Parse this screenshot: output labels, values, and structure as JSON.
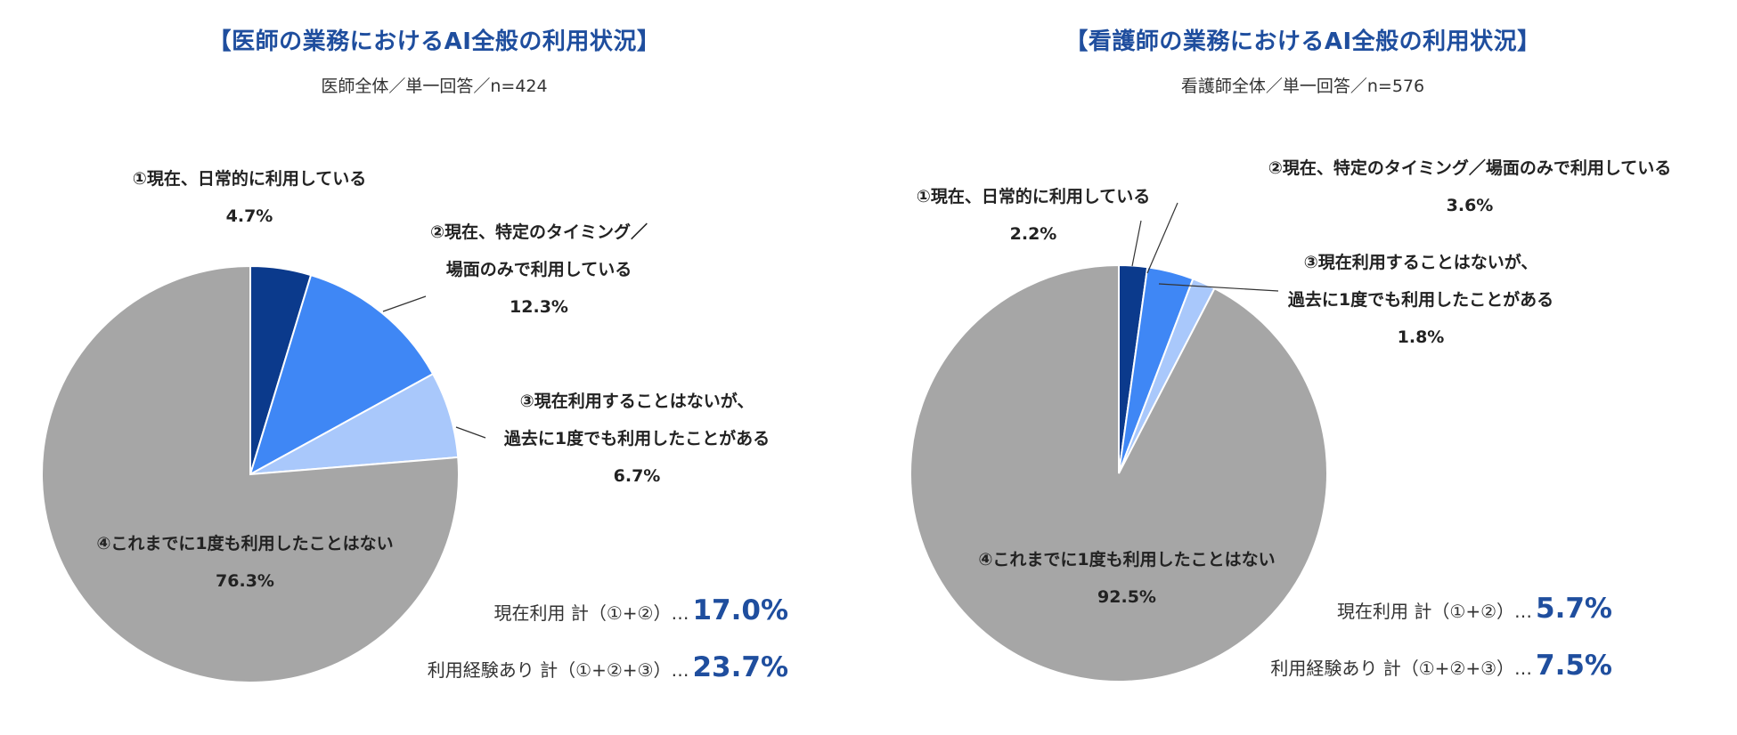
{
  "colors": {
    "title": "#1f4e9e",
    "slice1": "#0b3a8c",
    "slice2": "#3f87f5",
    "slice3": "#a9c8fb",
    "slice4": "#a6a6a6",
    "leader": "#333333"
  },
  "chart_data": [
    {
      "type": "pie",
      "title": "【医師の業務におけるAI全般の利用状況】",
      "subtitle": "医師全体／単一回答／n=424",
      "slices": [
        {
          "label": "①現在、日常的に利用している",
          "value": 4.7,
          "value_label": "4.7%",
          "label_lines": [
            "①現在、日常的に利用している"
          ]
        },
        {
          "label": "②現在、特定のタイミング／場面のみで利用している",
          "value": 12.3,
          "value_label": "12.3%",
          "label_lines": [
            "②現在、特定のタイミング／",
            "場面のみで利用している"
          ]
        },
        {
          "label": "③現在利用することはないが、過去に1度でも利用したことがある",
          "value": 6.7,
          "value_label": "6.7%",
          "label_lines": [
            "③現在利用することはないが、",
            "過去に1度でも利用したことがある"
          ]
        },
        {
          "label": "④これまでに1度も利用したことはない",
          "value": 76.3,
          "value_label": "76.3%",
          "label_lines": [
            "④これまでに1度も利用したことはない"
          ]
        }
      ],
      "summary": [
        {
          "label": "現在利用 計（①+②）…",
          "value": "17.0%"
        },
        {
          "label": "利用経験あり 計（①+②+③）…",
          "value": "23.7%"
        }
      ]
    },
    {
      "type": "pie",
      "title": "【看護師の業務におけるAI全般の利用状況】",
      "subtitle": "看護師全体／単一回答／n=576",
      "slices": [
        {
          "label": "①現在、日常的に利用している",
          "value": 2.2,
          "value_label": "2.2%",
          "label_lines": [
            "①現在、日常的に利用している"
          ]
        },
        {
          "label": "②現在、特定のタイミング／場面のみで利用している",
          "value": 3.6,
          "value_label": "3.6%",
          "label_lines": [
            "②現在、特定のタイミング／場面のみで利用している"
          ]
        },
        {
          "label": "③現在利用することはないが、過去に1度でも利用したことがある",
          "value": 1.8,
          "value_label": "1.8%",
          "label_lines": [
            "③現在利用することはないが、",
            "過去に1度でも利用したことがある"
          ]
        },
        {
          "label": "④これまでに1度も利用したことはない",
          "value": 92.5,
          "value_label": "92.5%",
          "label_lines": [
            "④これまでに1度も利用したことはない"
          ]
        }
      ],
      "summary": [
        {
          "label": "現在利用 計（①+②）…",
          "value": "5.7%"
        },
        {
          "label": "利用経験あり 計（①+②+③）…",
          "value": "7.5%"
        }
      ]
    }
  ]
}
